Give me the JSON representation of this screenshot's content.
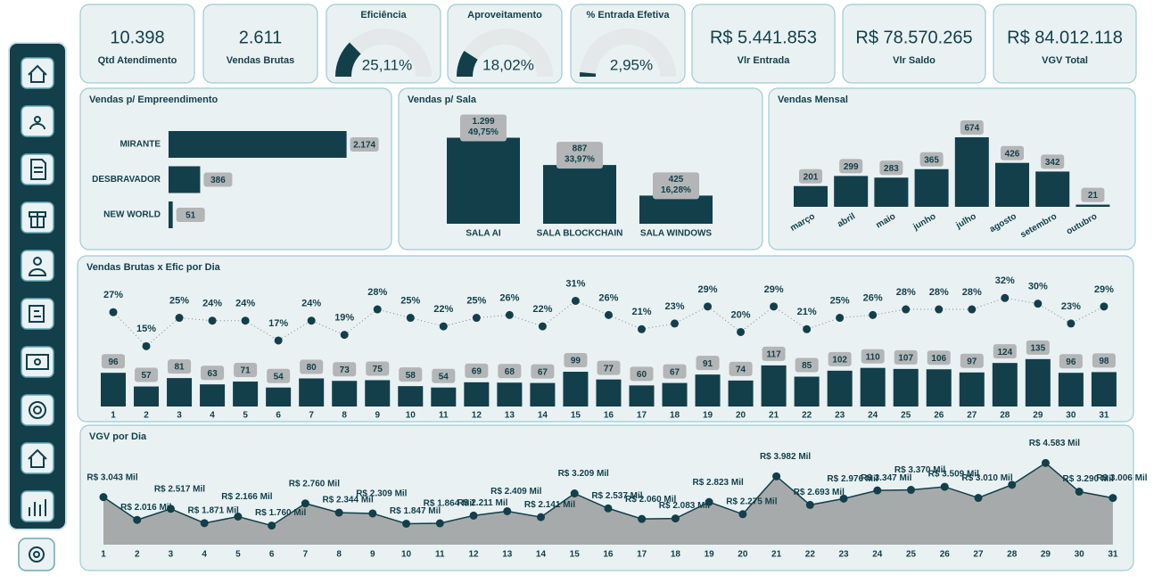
{
  "kpis": [
    {
      "value": "10.398",
      "label": "Qtd Atendimento"
    },
    {
      "value": "2.611",
      "label": "Vendas Brutas"
    },
    {
      "value": "R$ 5.441.853",
      "label": "Vlr Entrada"
    },
    {
      "value": "R$ 78.570.265",
      "label": "Vlr Saldo"
    },
    {
      "value": "R$ 84.012.118",
      "label": "VGV Total"
    }
  ],
  "chart_data": [
    {
      "type": "gauge",
      "title": "Eficiência",
      "values": [
        25.11
      ],
      "value_labels": [
        "25,11%"
      ],
      "ylim": [
        0,
        100
      ],
      "color": "#123f4a"
    },
    {
      "type": "gauge",
      "title": "Aproveitamento",
      "values": [
        18.02
      ],
      "value_labels": [
        "18,02%"
      ],
      "ylim": [
        0,
        100
      ],
      "color": "#123f4a"
    },
    {
      "type": "gauge",
      "title": "% Entrada Efetiva",
      "values": [
        2.95
      ],
      "value_labels": [
        "2,95%"
      ],
      "ylim": [
        0,
        100
      ],
      "color": "#123f4a"
    },
    {
      "type": "hbar",
      "title": "Vendas p/ Empreendimento",
      "categories": [
        "MIRANTE",
        "DESBRAVADOR",
        "NEW WORLD"
      ],
      "values": [
        2174,
        386,
        51
      ],
      "value_labels": [
        "2.174",
        "386",
        "51"
      ],
      "xlim": [
        0,
        2200
      ],
      "color": "#123f4a"
    },
    {
      "type": "bar",
      "title": "Vendas p/ Sala",
      "categories": [
        "SALA AI",
        "SALA BLOCKCHAIN",
        "SALA WINDOWS"
      ],
      "values": [
        1299,
        887,
        425
      ],
      "value_labels": [
        "1.299",
        "887",
        "425"
      ],
      "percent_labels": [
        "49,75%",
        "33,97%",
        "16,28%"
      ],
      "ylim": [
        0,
        1400
      ],
      "color": "#123f4a"
    },
    {
      "type": "bar",
      "title": "Vendas Mensal",
      "categories": [
        "março",
        "abril",
        "maio",
        "junho",
        "julho",
        "agosto",
        "setembro",
        "outubro"
      ],
      "values": [
        201,
        299,
        283,
        365,
        674,
        426,
        342,
        21
      ],
      "ylim": [
        0,
        700
      ],
      "color": "#123f4a",
      "rotate_labels": true
    },
    {
      "type": "combo",
      "title": "Vendas Brutas x Efic por Dia",
      "categories": [
        "1",
        "2",
        "3",
        "4",
        "5",
        "6",
        "7",
        "8",
        "9",
        "10",
        "11",
        "12",
        "13",
        "14",
        "15",
        "16",
        "17",
        "18",
        "19",
        "20",
        "21",
        "22",
        "23",
        "24",
        "25",
        "26",
        "27",
        "28",
        "29",
        "30",
        "31"
      ],
      "ylim": [
        0,
        160
      ],
      "y2lim": [
        0,
        45
      ],
      "series": [
        {
          "type": "bar",
          "color": "#123f4a",
          "values": [
            96,
            57,
            81,
            63,
            71,
            54,
            80,
            73,
            75,
            58,
            54,
            69,
            68,
            67,
            99,
            77,
            60,
            67,
            91,
            74,
            117,
            85,
            102,
            110,
            107,
            106,
            97,
            124,
            135,
            96,
            98
          ]
        },
        {
          "type": "line",
          "axis": "y2",
          "color": "#123f4a",
          "values": [
            27,
            15,
            25,
            24,
            24,
            17,
            24,
            19,
            28,
            25,
            22,
            25,
            26,
            22,
            31,
            26,
            21,
            23,
            29,
            20,
            29,
            21,
            25,
            26,
            28,
            28,
            28,
            32,
            30,
            23,
            29
          ],
          "value_labels": [
            "27%",
            "15%",
            "25%",
            "24%",
            "24%",
            "17%",
            "24%",
            "19%",
            "28%",
            "25%",
            "22%",
            "25%",
            "26%",
            "22%",
            "31%",
            "26%",
            "21%",
            "23%",
            "29%",
            "20%",
            "29%",
            "21%",
            "25%",
            "26%",
            "28%",
            "28%",
            "28%",
            "32%",
            "30%",
            "23%",
            "29%"
          ]
        }
      ]
    },
    {
      "type": "area",
      "title": "VGV por Dia",
      "categories": [
        "1",
        "2",
        "3",
        "4",
        "5",
        "6",
        "7",
        "8",
        "9",
        "10",
        "11",
        "12",
        "13",
        "14",
        "15",
        "16",
        "17",
        "18",
        "19",
        "20",
        "21",
        "22",
        "23",
        "24",
        "25",
        "26",
        "27",
        "28",
        "29",
        "30",
        "31"
      ],
      "values": [
        3043,
        2016,
        2517,
        1871,
        2166,
        1760,
        2760,
        2344,
        2309,
        1847,
        1864,
        2211,
        2409,
        2141,
        3209,
        2537,
        2060,
        2083,
        2823,
        2275,
        3982,
        2693,
        2976,
        3347,
        3370,
        3509,
        3010,
        3600,
        4583,
        3290,
        3006
      ],
      "value_labels": [
        "R$ 3.043 Mil",
        "R$ 2.016 Mil",
        "R$ 2.517 Mil",
        "R$ 1.871 Mil",
        "R$ 2.166 Mil",
        "R$ 1.760 Mil",
        "R$ 2.760 Mil",
        "R$ 2.344 Mil",
        "R$ 2.309 Mil",
        "R$ 1.847 Mil",
        "R$ 1.864 Mil",
        "R$ 2.211 Mil",
        "R$ 2.409 Mil",
        "R$ 2.141 Mil",
        "R$ 3.209 Mil",
        "R$ 2.537 Mil",
        "R$ 2.060 Mil",
        "R$ 2.083 Mil",
        "R$ 2.823 Mil",
        "R$ 2.275 Mil",
        "R$ 3.982 Mil",
        "R$ 2.693 Mil",
        "R$ 2.976 Mil",
        "R$ 3.347 Mil",
        "R$ 3.370 Mil",
        "R$ 3.509 Mil",
        "R$ 3.010 Mil",
        null,
        "R$ 4.583 Mil",
        "R$ 3.290 Mil",
        "R$ 3.006 Mil"
      ],
      "ylim": [
        900,
        5000
      ],
      "color": "#123f4a",
      "fill": "#a7aaab"
    }
  ]
}
